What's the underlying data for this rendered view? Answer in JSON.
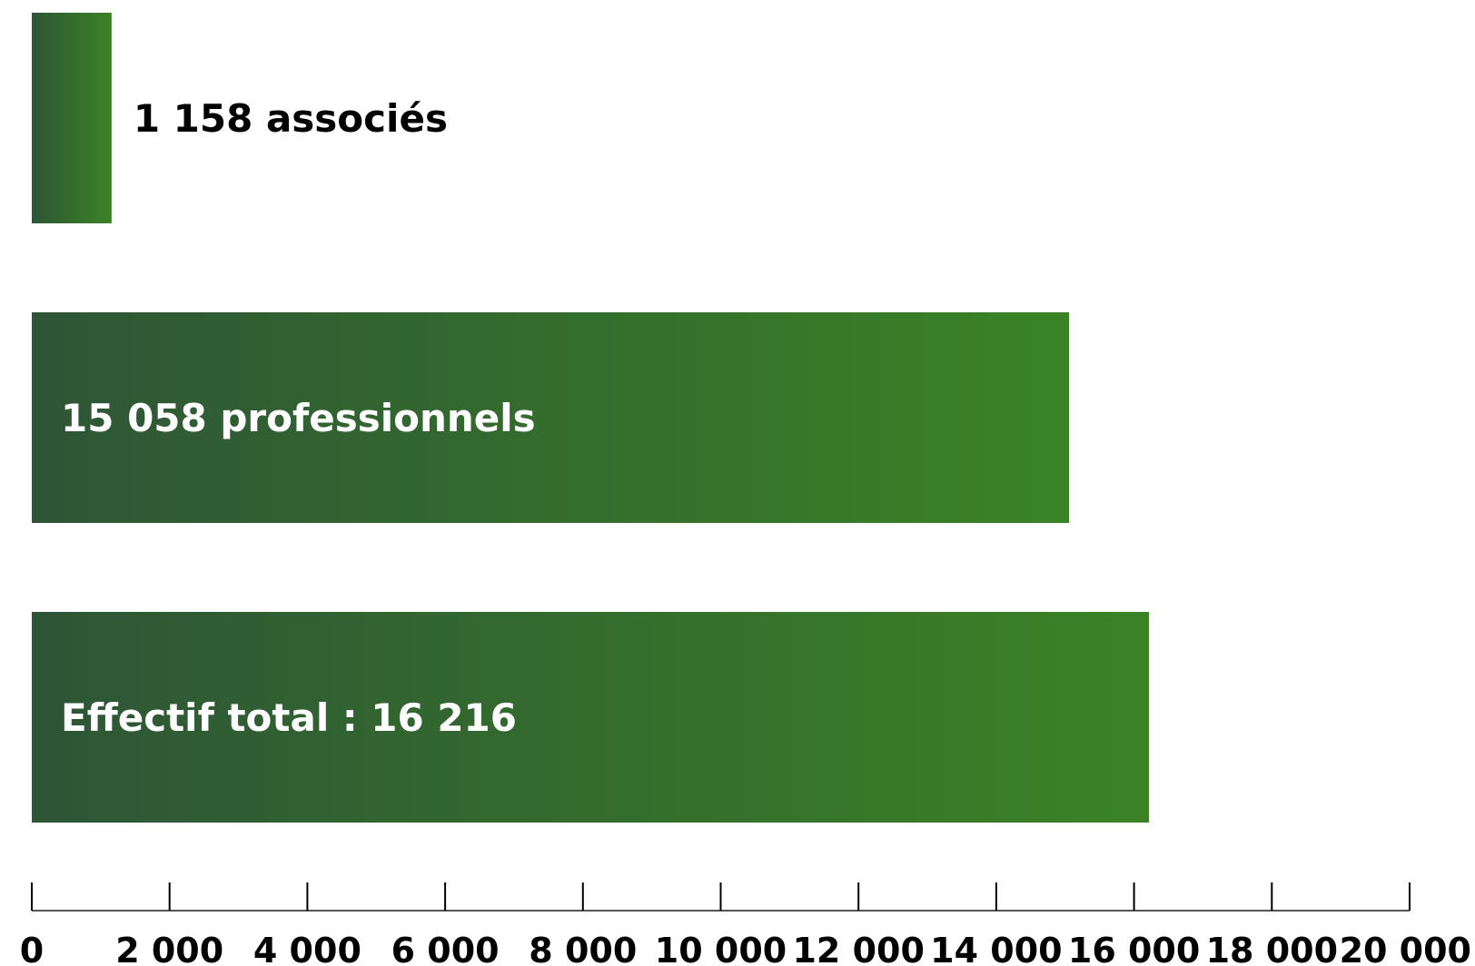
{
  "chart_data": {
    "type": "bar",
    "orientation": "horizontal",
    "categories": [
      "associés",
      "professionnels",
      "Effectif total"
    ],
    "values": [
      1158,
      15058,
      16216
    ],
    "bar_labels": [
      "1 158 associés",
      "15 058 professionnels",
      "Effectif total : 16 216"
    ],
    "xlim": [
      0,
      20000
    ],
    "x_ticks": [
      0,
      2000,
      4000,
      6000,
      8000,
      10000,
      12000,
      14000,
      16000,
      18000,
      20000
    ],
    "x_tick_labels": [
      "0",
      "2 000",
      "4 000",
      "6 000",
      "8 000",
      "10 000",
      "12 000",
      "14 000",
      "16 000",
      "18 000",
      "20 000"
    ],
    "grid": false,
    "legend": "none",
    "colors": {
      "bar_start": "#2e5536",
      "bar_end": "#3a8325",
      "label_on_bar": "#ffffff",
      "label_outside": "#000000",
      "axis": "#555555"
    }
  }
}
